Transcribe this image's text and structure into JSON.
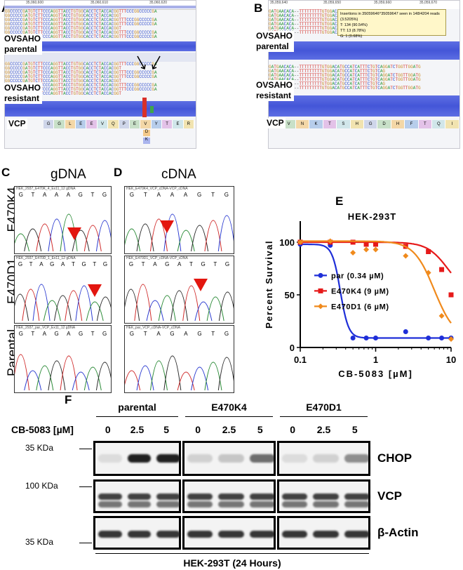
{
  "panels": {
    "A": {
      "label": "A",
      "coords": [
        "35,060,600",
        "35,060,610",
        "35,060,620"
      ],
      "parental_label": [
        "OVSAHO",
        "parental"
      ],
      "resistant_label": [
        "OVSAHO",
        "resistant"
      ],
      "gene_label": "VCP",
      "aa_track": [
        "G",
        "G",
        "L",
        "E",
        "E",
        "V",
        "Q",
        "P",
        "E",
        "V",
        "Y",
        "T",
        "E",
        "R"
      ],
      "variant_aa": [
        "D",
        "K"
      ],
      "read_seq": "GGCCCCCGATGTCTTCCCAGGTTACCTGTGGCACCTCTACCACGGTTTCCC"
    },
    "B": {
      "label": "B",
      "coords": [
        "35,059,640",
        "35,059,650",
        "35,059,660",
        "35,059,670"
      ],
      "parental_label": [
        "OVSAHO",
        "parental"
      ],
      "resistant_label": [
        "OVSAHO",
        "resistant"
      ],
      "gene_label": "VCP",
      "aa_track": [
        "F",
        "V",
        "N",
        "K",
        "T",
        "S",
        "H",
        "G",
        "D",
        "H",
        "F",
        "T",
        "Q",
        "I"
      ],
      "tooltip": [
        "Insertions in 35059646^35059647 seen in 148/4204 reads (3.5205%)",
        "T: 134 (90.54%)",
        "TT: 13 (8.78%)",
        "G: 1 (0.68%)"
      ],
      "read_seq": "GATGAACACA--TTTTTTTTTGTGGACATGCCATCATTTCTGTCAGGATCTGGTTG"
    },
    "C": {
      "label": "C",
      "title": "gDNA"
    },
    "D": {
      "label": "D",
      "title": "cDNA"
    },
    "row_labels": [
      "E470K4",
      "E470D1",
      "Parental"
    ],
    "traces": {
      "gDNA": [
        "HEK_2937_E470K_4_Ex11_12 gDNA",
        "HEK_2937_E470D_1_Ex11_12 gDNA",
        "HEK_2937_par_VCP_Ex11_12 gDNA"
      ],
      "cDNA": [
        "HEK_E470K4_VCP_cDNA-VCP_cDNA",
        "HEK_E470D1_VCP_cDNA-VCP_cDNA",
        "HEK_par_VCP_cDNA-VCP_cDNA"
      ],
      "seq_K4": [
        "G",
        "T",
        "A",
        "A",
        "A",
        "G",
        "T",
        "G"
      ],
      "seq_D1": [
        "G",
        "T",
        "A",
        "G",
        "A",
        "T",
        "G",
        "T",
        "G"
      ],
      "seq_par": [
        "G",
        "T",
        "A",
        "G",
        "A",
        "G",
        "T",
        "G"
      ]
    },
    "E": {
      "label": "E"
    },
    "F": {
      "label": "F",
      "groups": [
        "parental",
        "E470K4",
        "E470D1"
      ],
      "dose_label": "CB-5083 [µM]",
      "doses": [
        "0",
        "2.5",
        "5",
        "0",
        "2.5",
        "5",
        "0",
        "2.5",
        "5"
      ],
      "markers": [
        "35 KDa",
        "100 KDa",
        "35 KDa"
      ],
      "blots": [
        "CHOP",
        "VCP",
        "β-Actin"
      ],
      "footer": "HEK-293T (24 Hours)",
      "chop_intensity": [
        0.1,
        0.95,
        0.95,
        0.15,
        0.2,
        0.6,
        0.1,
        0.15,
        0.45
      ]
    }
  },
  "chart_data": {
    "type": "line",
    "title": "HEK-293T",
    "xlabel": "CB-5083 [µM]",
    "ylabel": "Percent Survival",
    "xscale": "log",
    "xlim": [
      0.1,
      10
    ],
    "ylim": [
      0,
      120
    ],
    "xticks": [
      "0.1",
      "1",
      "10"
    ],
    "yticks": [
      "0",
      "50",
      "100"
    ],
    "series": [
      {
        "name": "par (0.34 µM)",
        "color": "#1f2fd8",
        "ic50": 0.34,
        "x": [
          0.1,
          0.25,
          0.5,
          0.75,
          1,
          2.5,
          5,
          7.5,
          10
        ],
        "y": [
          98,
          97,
          9,
          9,
          9,
          15,
          9,
          9,
          9
        ]
      },
      {
        "name": "E470K4 (9 µM)",
        "color": "#e61a1a",
        "ic50": 9,
        "x": [
          0.1,
          0.25,
          0.5,
          0.75,
          1,
          2.5,
          5,
          7.5,
          10
        ],
        "y": [
          100,
          100,
          100,
          98,
          98,
          96,
          91,
          74,
          50
        ]
      },
      {
        "name": "E470D1 (6 µM)",
        "color": "#f08a1c",
        "ic50": 6,
        "x": [
          0.1,
          0.25,
          0.5,
          0.75,
          1,
          2.5,
          5,
          7.5,
          10
        ],
        "y": [
          100,
          101,
          90,
          93,
          93,
          87,
          71,
          30,
          8
        ]
      }
    ]
  }
}
